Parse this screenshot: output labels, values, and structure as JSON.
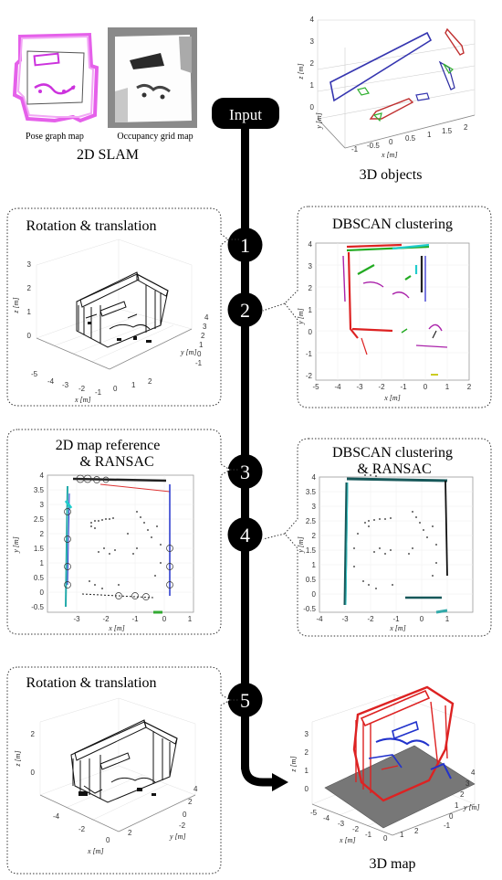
{
  "input": {
    "label": "Input"
  },
  "slam": {
    "caption": "2D SLAM",
    "pose_graph_label": "Pose graph map",
    "occupancy_label": "Occupancy grid map"
  },
  "objects3d": {
    "caption": "3D objects",
    "x_axis": "x [m]",
    "y_axis": "y [m]",
    "z_axis": "z [m]",
    "x_ticks": [
      "-1",
      "-0.5",
      "0",
      "0.5",
      "1",
      "1.5",
      "2"
    ],
    "z_ticks": [
      "0",
      "1",
      "2",
      "3",
      "4"
    ]
  },
  "steps": [
    {
      "num": "1"
    },
    {
      "num": "2"
    },
    {
      "num": "3"
    },
    {
      "num": "4"
    },
    {
      "num": "5"
    }
  ],
  "panel_rt1": {
    "title": "Rotation & translation",
    "x_axis": "x [m]",
    "y_axis": "y [m]",
    "z_axis": "z [m]",
    "x_ticks": [
      "-5",
      "-4",
      "-3",
      "-2",
      "-1",
      "0",
      "1",
      "2"
    ],
    "y_ticks": [
      "-1",
      "0",
      "1",
      "2",
      "3",
      "4"
    ],
    "z_ticks": [
      "0",
      "1",
      "2",
      "3"
    ]
  },
  "panel_db": {
    "title": "DBSCAN clustering",
    "x_axis": "x [m]",
    "y_axis": "y [m]",
    "x_ticks": [
      "-5",
      "-4",
      "-3",
      "-2",
      "-1",
      "0",
      "1",
      "2"
    ],
    "y_ticks": [
      "4",
      "3",
      "2",
      "1",
      "0",
      "-1",
      "-2"
    ]
  },
  "panel_ransac1": {
    "title_line1": "2D map reference",
    "title_line2": "& RANSAC",
    "x_axis": "x [m]",
    "y_axis": "y [m]",
    "x_ticks": [
      "-3",
      "-2",
      "-1",
      "0",
      "1"
    ],
    "y_ticks": [
      "4",
      "3.5",
      "3",
      "2.5",
      "2",
      "1.5",
      "1",
      "0.5",
      "0",
      "-0.5"
    ]
  },
  "panel_ransac2": {
    "title_line1": "DBSCAN clustering",
    "title_line2": "& RANSAC",
    "x_axis": "x [m]",
    "y_axis": "y [m]",
    "x_ticks": [
      "-4",
      "-3",
      "-2",
      "-1",
      "0",
      "1"
    ],
    "y_ticks": [
      "4",
      "3.5",
      "3",
      "2.5",
      "2",
      "1.5",
      "1",
      "0.5",
      "0",
      "-0.5"
    ]
  },
  "panel_rt2": {
    "title": "Rotation & translation",
    "x_axis": "x [m]",
    "y_axis": "y [m]",
    "z_axis": "z [m]",
    "x_ticks": [
      "-4",
      "-2",
      "0",
      "2"
    ],
    "y_ticks": [
      "-2",
      "0",
      "2",
      "4"
    ],
    "z_ticks": [
      "0",
      "2"
    ]
  },
  "map3d": {
    "caption": "3D map",
    "x_axis": "x [m]",
    "y_axis": "y [m]",
    "z_axis": "z [m]",
    "x_ticks": [
      "-5",
      "-4",
      "-3",
      "-2",
      "-1",
      "0",
      "1",
      "2"
    ],
    "y_ticks": [
      "-1",
      "0",
      "1",
      "2",
      "3",
      "4"
    ],
    "z_ticks": [
      "0",
      "1",
      "2",
      "3"
    ]
  }
}
